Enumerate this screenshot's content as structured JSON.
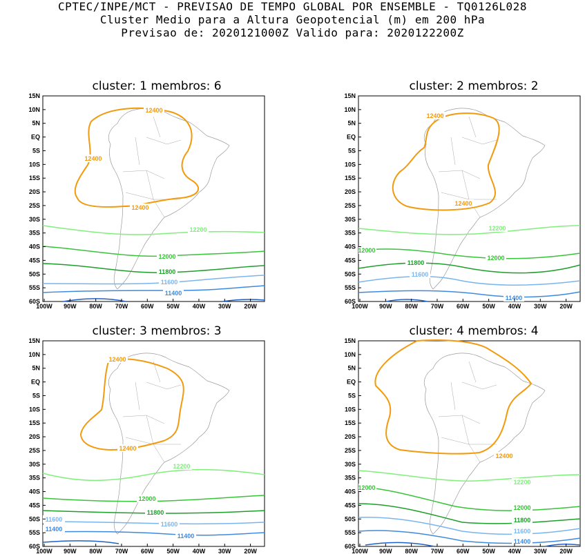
{
  "header": {
    "line1": "CPTEC/INPE/MCT - PREVISAO DE TEMPO GLOBAL POR ENSEMBLE - TQ0126L028",
    "line2": "Cluster Medio para a Altura Geopotencial (m) em 200 hPa",
    "line3": "Previsao de: 2020121000Z   Valido para: 2020122200Z"
  },
  "axes": {
    "lat_ticks": [
      "15N",
      "10N",
      "5N",
      "EQ",
      "5S",
      "10S",
      "15S",
      "20S",
      "25S",
      "30S",
      "35S",
      "40S",
      "45S",
      "50S",
      "55S",
      "60S"
    ],
    "lon_ticks": [
      "100W",
      "90W",
      "80W",
      "70W",
      "60W",
      "50W",
      "40W",
      "30W",
      "20W"
    ]
  },
  "colors": {
    "c12400": "#f29a0c",
    "c12200": "#7ff07a",
    "c12000": "#36c436",
    "c11800": "#1d9e2a",
    "c11600": "#78b4f0",
    "c11400": "#3b8ae0",
    "c11200": "#1f5fc8"
  },
  "panels": [
    {
      "title": "cluster: 1   membros: 6",
      "labels": {
        "a": "12400",
        "b": "12400",
        "c": "12400",
        "d": "12200",
        "e": "12000",
        "f": "11800",
        "g": "11600",
        "h": "11400"
      }
    },
    {
      "title": "cluster: 2   membros: 2",
      "labels": {
        "a": "12400",
        "b": "12400",
        "d": "12200",
        "e": "12000",
        "e2": "12000",
        "f": "11800",
        "g": "11600",
        "h": "11400"
      }
    },
    {
      "title": "cluster: 3   membros: 3",
      "labels": {
        "a": "12400",
        "b": "12400",
        "d": "12200",
        "e": "12000",
        "f": "11800",
        "g": "11600",
        "g2": "11600",
        "h": "11400",
        "h2": "11400"
      }
    },
    {
      "title": "cluster: 4   membros: 4",
      "labels": {
        "b": "12400",
        "d": "12200",
        "e": "12000",
        "e2": "12000",
        "f": "11800",
        "g": "11600",
        "h": "11400"
      }
    }
  ]
}
